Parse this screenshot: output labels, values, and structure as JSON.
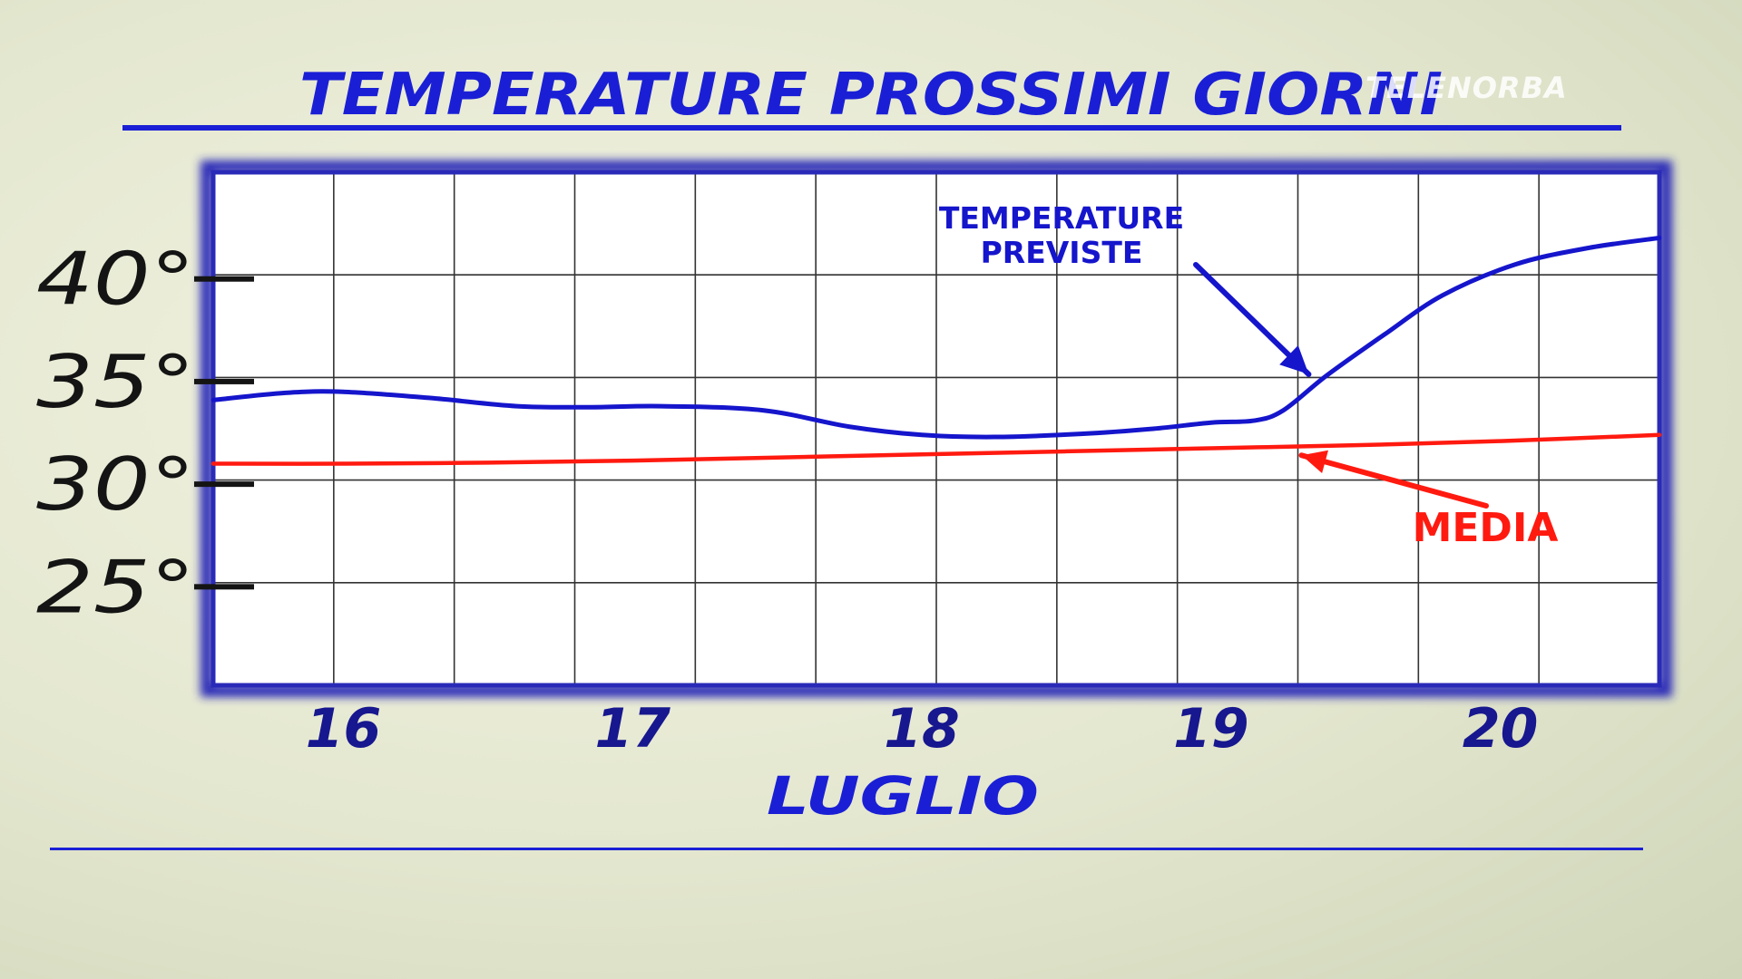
{
  "overlay": {
    "watermark": "TELENORBA"
  },
  "colors": {
    "title": "#1a1fd6",
    "forecast": "#1515cc",
    "average": "#ff1a10",
    "grid": "#333333",
    "frame": "#2a2ab8",
    "axis_text": "#141414",
    "day_text": "#17178f"
  },
  "chart_data": {
    "type": "line",
    "title": "TEMPERATURE PROSSIMI GIORNI",
    "xlabel": "LUGLIO",
    "ylabel": "",
    "x_ticks": [
      "16",
      "17",
      "18",
      "19",
      "20"
    ],
    "xlim": [
      15.55,
      20.55
    ],
    "y_ticks": [
      "40°",
      "35°",
      "30°",
      "25°"
    ],
    "y_tick_values": [
      40,
      35,
      30,
      25
    ],
    "ylim": [
      20.2,
      45.2
    ],
    "grid": true,
    "legend": "annotations",
    "series": [
      {
        "name": "TEMPERATURE PREVISTE",
        "color": "#1515cc",
        "x": [
          15.55,
          15.8,
          16.0,
          16.3,
          16.6,
          16.85,
          17.1,
          17.45,
          17.75,
          18.0,
          18.25,
          18.55,
          18.8,
          19.0,
          19.15,
          19.25,
          19.4,
          19.6,
          19.8,
          20.05,
          20.3,
          20.55
        ],
        "values": [
          34.1,
          34.45,
          34.5,
          34.2,
          33.8,
          33.75,
          33.8,
          33.6,
          32.8,
          32.4,
          32.3,
          32.45,
          32.7,
          33.0,
          33.1,
          33.6,
          35.3,
          37.3,
          39.2,
          40.7,
          41.5,
          42.0
        ]
      },
      {
        "name": "MEDIA",
        "color": "#ff1a10",
        "x": [
          15.55,
          16.0,
          16.5,
          17.0,
          17.5,
          18.0,
          18.5,
          19.0,
          19.5,
          20.0,
          20.55
        ],
        "values": [
          31.0,
          31.0,
          31.05,
          31.15,
          31.3,
          31.45,
          31.6,
          31.75,
          31.9,
          32.1,
          32.4
        ]
      }
    ],
    "annotations": [
      {
        "lines": [
          "TEMPERATURE",
          "PREVISTE"
        ],
        "series": "TEMPERATURE PREVISTE",
        "point_to": [
          19.35,
          35.0
        ]
      },
      {
        "lines": [
          "MEDIA"
        ],
        "series": "MEDIA",
        "point_to": [
          19.3,
          31.85
        ]
      }
    ]
  }
}
